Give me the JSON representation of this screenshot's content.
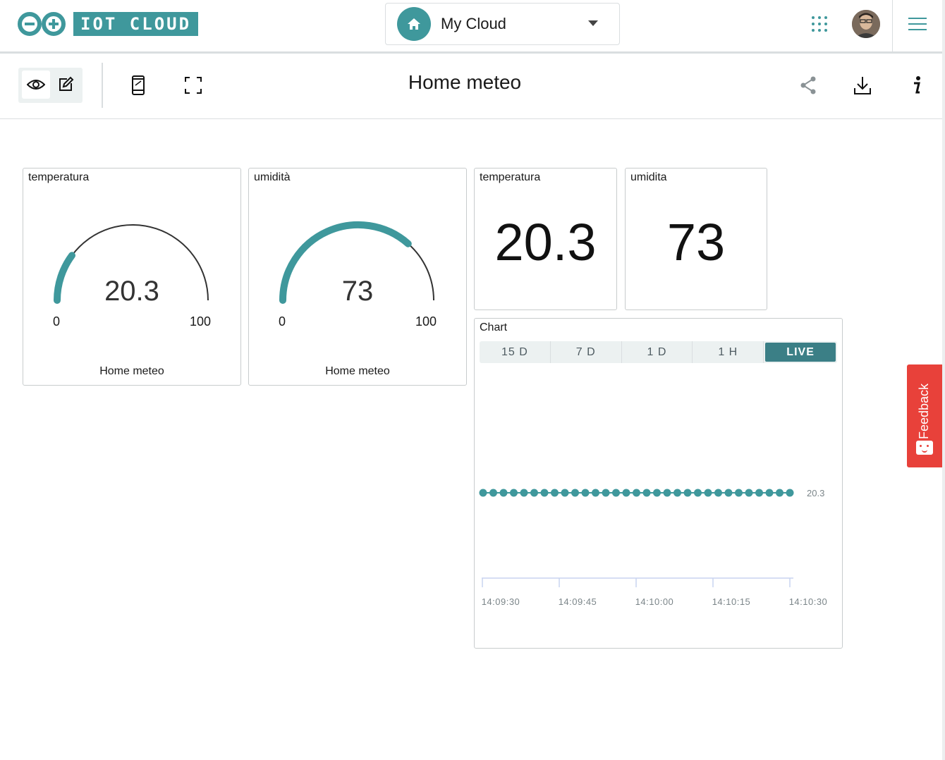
{
  "header": {
    "logo_text": "IOT CLOUD",
    "space_name": "My Cloud"
  },
  "toolbar": {
    "title": "Home meteo"
  },
  "widgets": {
    "gauge_temperature": {
      "label": "temperatura",
      "value": "20.3",
      "min": "0",
      "max": "100",
      "thing": "Home meteo",
      "fraction": 0.203
    },
    "gauge_humidity": {
      "label": "umidità",
      "value": "73",
      "min": "0",
      "max": "100",
      "thing": "Home meteo",
      "fraction": 0.73
    },
    "value_temperature": {
      "label": "temperatura",
      "value": "20.3"
    },
    "value_humidity": {
      "label": "umidita",
      "value": "73"
    }
  },
  "chart": {
    "label": "Chart",
    "tabs": [
      "15 D",
      "7 D",
      "1 D",
      "1 H",
      "LIVE"
    ],
    "active_tab": "LIVE"
  },
  "chart_data": {
    "type": "line",
    "title": "Chart",
    "x_ticks": [
      "14:09:30",
      "14:09:45",
      "14:10:00",
      "14:10:15",
      "14:10:30"
    ],
    "series": [
      {
        "values": [
          20.3,
          20.3,
          20.3,
          20.3,
          20.3,
          20.3,
          20.3,
          20.3,
          20.3,
          20.3,
          20.3,
          20.3,
          20.3,
          20.3,
          20.3,
          20.3,
          20.3,
          20.3,
          20.3,
          20.3,
          20.3,
          20.3,
          20.3,
          20.3,
          20.3,
          20.3,
          20.3,
          20.3,
          20.3,
          20.3,
          20.3
        ],
        "color": "#3f989c"
      }
    ],
    "last_value_label": "20.3"
  },
  "feedback": {
    "label": "Feedback"
  },
  "colors": {
    "accent": "#3f989c",
    "live_tab": "#3b7f86",
    "feedback": "#e8413a",
    "gauge_track": "#333333"
  },
  "icons": [
    "home-icon",
    "caret-down-icon",
    "apps-grid-icon",
    "avatar",
    "hamburger-menu-icon",
    "eye-icon",
    "edit-icon",
    "mobile-icon",
    "fullscreen-icon",
    "share-icon",
    "download-icon",
    "info-icon"
  ]
}
